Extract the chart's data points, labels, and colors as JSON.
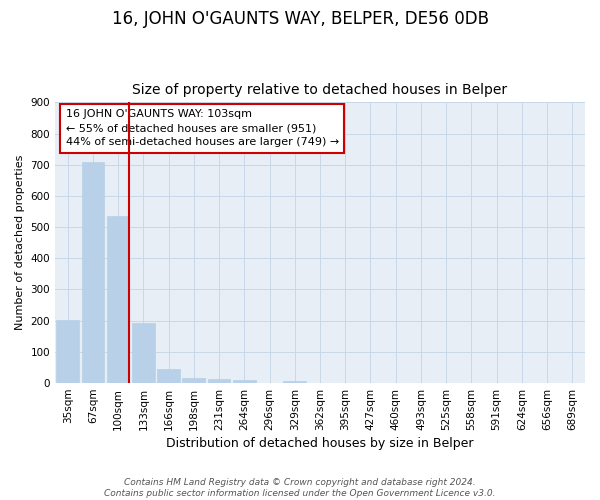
{
  "title": "16, JOHN O'GAUNTS WAY, BELPER, DE56 0DB",
  "subtitle": "Size of property relative to detached houses in Belper",
  "xlabel": "Distribution of detached houses by size in Belper",
  "ylabel": "Number of detached properties",
  "categories": [
    "35sqm",
    "67sqm",
    "100sqm",
    "133sqm",
    "166sqm",
    "198sqm",
    "231sqm",
    "264sqm",
    "296sqm",
    "329sqm",
    "362sqm",
    "395sqm",
    "427sqm",
    "460sqm",
    "493sqm",
    "525sqm",
    "558sqm",
    "591sqm",
    "624sqm",
    "656sqm",
    "689sqm"
  ],
  "values": [
    203,
    710,
    537,
    193,
    44,
    17,
    13,
    10,
    0,
    8,
    0,
    0,
    0,
    0,
    0,
    0,
    0,
    0,
    0,
    0,
    0
  ],
  "bar_color": "#b8d0e8",
  "bar_edgecolor": "#b8d0e8",
  "vline_x_index": 2,
  "vline_color": "#cc0000",
  "annotation_text": "16 JOHN O'GAUNTS WAY: 103sqm\n← 55% of detached houses are smaller (951)\n44% of semi-detached houses are larger (749) →",
  "annotation_box_edgecolor": "#cc0000",
  "grid_color": "#c8d8e8",
  "background_color": "#e8eef6",
  "footer": "Contains HM Land Registry data © Crown copyright and database right 2024.\nContains public sector information licensed under the Open Government Licence v3.0.",
  "ylim": [
    0,
    900
  ],
  "yticks": [
    0,
    100,
    200,
    300,
    400,
    500,
    600,
    700,
    800,
    900
  ],
  "title_fontsize": 12,
  "subtitle_fontsize": 10,
  "xlabel_fontsize": 9,
  "ylabel_fontsize": 8,
  "tick_fontsize": 7.5,
  "annotation_fontsize": 8,
  "footer_fontsize": 6.5
}
